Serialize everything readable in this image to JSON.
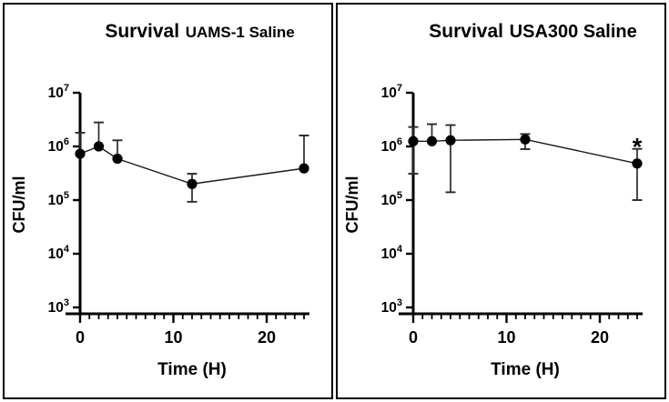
{
  "figure": {
    "background": "#ffffff",
    "panel_border_color": "#000000",
    "panels": [
      {
        "title_main": "Survival",
        "title_sub": "UAMS-1 Saline",
        "ylabel": "CFU/ml",
        "xlabel": "Time (H)"
      },
      {
        "title_main": "Survival",
        "title_sub": "USA300 Saline",
        "ylabel": "CFU/ml",
        "xlabel": "Time (H)"
      }
    ]
  },
  "chart_data": [
    {
      "type": "line",
      "title": "Survival UAMS-1 Saline",
      "xlabel": "Time (H)",
      "ylabel": "CFU/ml",
      "x_scale": "linear",
      "y_scale": "log10",
      "xlim": [
        0,
        24
      ],
      "ylim": [
        1000,
        10000000
      ],
      "x_major_ticks": [
        0,
        10,
        20
      ],
      "x_minor_tick_step": 1,
      "y_tick_exponents": [
        3,
        4,
        5,
        6,
        7
      ],
      "grid": false,
      "legend": false,
      "marker": "filled-circle",
      "marker_color": "#000000",
      "line_color": "#1a1a1a",
      "error_bar_color": "#2b2b2b",
      "points": [
        {
          "t": 0,
          "cfu": 730000,
          "err_hi": 1800000,
          "err_lo": null
        },
        {
          "t": 2,
          "cfu": 1000000,
          "err_hi": 2800000,
          "err_lo": null
        },
        {
          "t": 4,
          "cfu": 590000,
          "err_hi": 1300000,
          "err_lo": null
        },
        {
          "t": 12,
          "cfu": 200000,
          "err_hi": 310000,
          "err_lo": 93000
        },
        {
          "t": 24,
          "cfu": 390000,
          "err_hi": 1600000,
          "err_lo": null
        }
      ],
      "annotations": []
    },
    {
      "type": "line",
      "title": "Survival USA300 Saline",
      "xlabel": "Time (H)",
      "ylabel": "CFU/ml",
      "x_scale": "linear",
      "y_scale": "log10",
      "xlim": [
        0,
        24
      ],
      "ylim": [
        1000,
        10000000
      ],
      "x_major_ticks": [
        0,
        10,
        20
      ],
      "x_minor_tick_step": 1,
      "y_tick_exponents": [
        3,
        4,
        5,
        6,
        7
      ],
      "grid": false,
      "legend": false,
      "marker": "filled-circle",
      "marker_color": "#000000",
      "line_color": "#1a1a1a",
      "error_bar_color": "#2b2b2b",
      "points": [
        {
          "t": 0,
          "cfu": 1250000,
          "err_hi": 2300000,
          "err_lo": 310000
        },
        {
          "t": 2,
          "cfu": 1250000,
          "err_hi": 2600000,
          "err_lo": null
        },
        {
          "t": 4,
          "cfu": 1300000,
          "err_hi": 2500000,
          "err_lo": 140000
        },
        {
          "t": 12,
          "cfu": 1350000,
          "err_hi": 1700000,
          "err_lo": 890000
        },
        {
          "t": 24,
          "cfu": 480000,
          "err_hi": 900000,
          "err_lo": 100000
        }
      ],
      "annotations": [
        {
          "t": 24,
          "text": "*",
          "at_cfu": 1250000
        }
      ]
    }
  ]
}
